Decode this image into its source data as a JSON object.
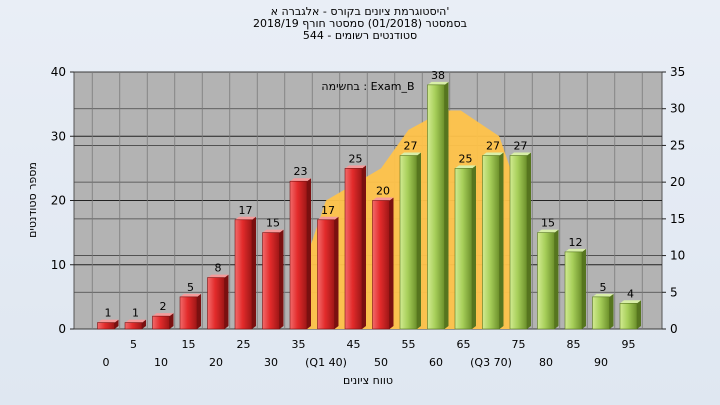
{
  "chart_data": {
    "type": "bar",
    "title_lines": [
      "היסטוגרמת ציונים בקורס - אלגברה א'",
      "בסמסטר  (01/2018)  סמסטר חורף 2018/19",
      "סטודנטים רשומים - 544"
    ],
    "annotation": "בחשימה : Exam_B",
    "xlabel": "טווח ציונים",
    "ylabel": "מספר סטודנטים",
    "ylim": [
      0,
      40
    ],
    "yticks": [
      0,
      10,
      20,
      30,
      40
    ],
    "y2lim": [
      0,
      35
    ],
    "y2ticks": [
      0,
      5,
      10,
      15,
      20,
      25,
      30,
      35
    ],
    "grid": true,
    "x_tick_labels_upper": [
      "5",
      "15",
      "25",
      "35",
      "45",
      "55",
      "65",
      "75",
      "85",
      "95"
    ],
    "x_tick_labels_lower": [
      "0",
      "10",
      "20",
      "30",
      "(Q1 40)",
      "50",
      "60",
      "(Q3 70)",
      "80",
      "90"
    ],
    "bars": [
      {
        "bin": "0",
        "value": 1,
        "label": "1",
        "color": "red"
      },
      {
        "bin": "5",
        "value": 1,
        "label": "1",
        "color": "red"
      },
      {
        "bin": "10",
        "value": 2,
        "label": "2",
        "color": "red"
      },
      {
        "bin": "15",
        "value": 5,
        "label": "5",
        "color": "red"
      },
      {
        "bin": "20",
        "value": 8,
        "label": "8",
        "color": "red"
      },
      {
        "bin": "25",
        "value": 17,
        "label": "17",
        "color": "red"
      },
      {
        "bin": "30",
        "value": 15,
        "label": "15",
        "color": "red"
      },
      {
        "bin": "35",
        "value": 23,
        "label": "23",
        "color": "red"
      },
      {
        "bin": "40",
        "value": 17,
        "label": "17",
        "color": "red"
      },
      {
        "bin": "45",
        "value": 25,
        "label": "25",
        "color": "red"
      },
      {
        "bin": "50",
        "value": 20,
        "label": "20",
        "color": "red"
      },
      {
        "bin": "55",
        "value": 27,
        "label": "27",
        "color": "green"
      },
      {
        "bin": "60",
        "value": 38,
        "label": "38",
        "color": "green"
      },
      {
        "bin": "65",
        "value": 25,
        "label": "25",
        "color": "green"
      },
      {
        "bin": "70",
        "value": 27,
        "label": "27",
        "color": "green"
      },
      {
        "bin": "75",
        "value": 27,
        "label": "27",
        "color": "green"
      },
      {
        "bin": "80",
        "value": 15,
        "label": "15",
        "color": "green"
      },
      {
        "bin": "85",
        "value": 12,
        "label": "12",
        "color": "green"
      },
      {
        "bin": "90",
        "value": 5,
        "label": "5",
        "color": "green"
      },
      {
        "bin": "95",
        "value": 4,
        "label": "4",
        "color": "green"
      }
    ],
    "quartile_box": {
      "q1": 40,
      "q3": 70,
      "color": "#ffc34a"
    },
    "colors": {
      "plot_bg": "#b3b3b3",
      "red_fill": "#e32b2b",
      "red_dark": "#7a1010",
      "green_fill": "#a7cf5a",
      "green_dark": "#56751f",
      "box_fill": "#ffc34a"
    }
  }
}
